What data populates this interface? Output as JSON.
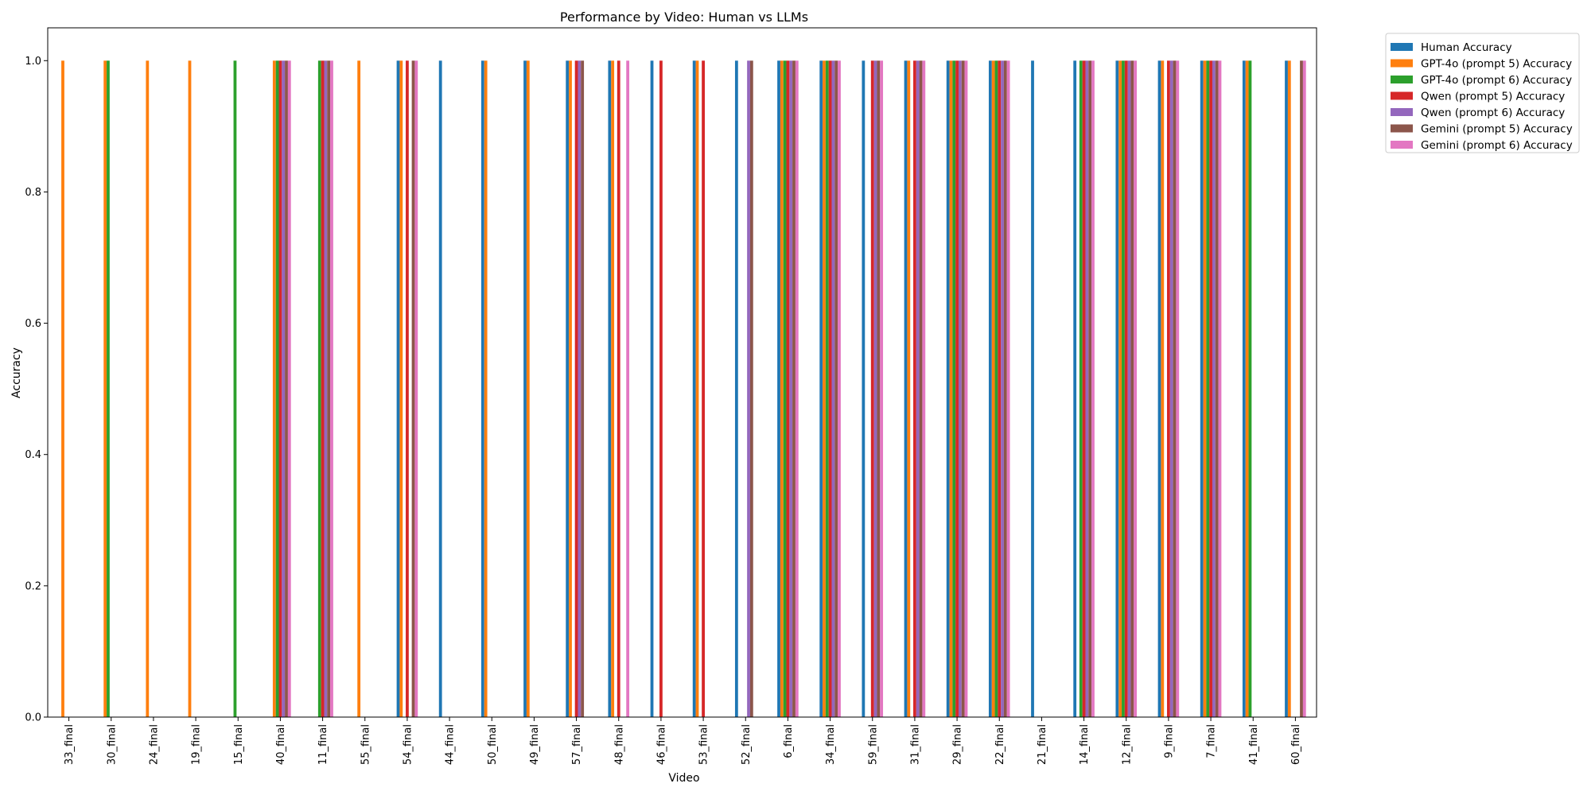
{
  "chart_data": {
    "type": "bar",
    "title": "Performance by Video: Human vs LLMs",
    "xlabel": "Video",
    "ylabel": "Accuracy",
    "ylim": [
      0,
      1.05
    ],
    "yticks": [
      "0.0",
      "0.2",
      "0.4",
      "0.6",
      "0.8",
      "1.0"
    ],
    "grid": false,
    "legend_position": "outside-top-right",
    "categories": [
      "33_final",
      "30_final",
      "24_final",
      "19_final",
      "15_final",
      "40_final",
      "11_final",
      "55_final",
      "54_final",
      "44_final",
      "50_final",
      "49_final",
      "57_final",
      "48_final",
      "46_final",
      "53_final",
      "52_final",
      "6_final",
      "34_final",
      "59_final",
      "31_final",
      "29_final",
      "22_final",
      "21_final",
      "14_final",
      "12_final",
      "9_final",
      "7_final",
      "41_final",
      "60_final"
    ],
    "series": [
      {
        "name": "Human Accuracy",
        "color": "#1f77b4",
        "values": [
          0,
          0,
          0,
          0,
          0,
          0,
          0,
          0,
          1,
          1,
          1,
          1,
          1,
          1,
          1,
          1,
          1,
          1,
          1,
          1,
          1,
          1,
          1,
          1,
          1,
          1,
          1,
          1,
          1,
          1
        ]
      },
      {
        "name": "GPT-4o (prompt 5) Accuracy",
        "color": "#ff7f0e",
        "values": [
          1,
          1,
          1,
          1,
          0,
          1,
          0,
          1,
          1,
          0,
          1,
          1,
          1,
          1,
          0,
          1,
          0,
          1,
          1,
          0,
          1,
          1,
          1,
          0,
          0,
          1,
          1,
          1,
          1,
          1
        ]
      },
      {
        "name": "GPT-4o (prompt 6) Accuracy",
        "color": "#2ca02c",
        "values": [
          0,
          1,
          0,
          0,
          1,
          1,
          1,
          0,
          0,
          0,
          0,
          0,
          0,
          0,
          0,
          0,
          0,
          1,
          1,
          0,
          0,
          1,
          1,
          0,
          1,
          1,
          0,
          1,
          1,
          0
        ]
      },
      {
        "name": "Qwen (prompt 5) Accuracy",
        "color": "#d62728",
        "values": [
          0,
          0,
          0,
          0,
          0,
          1,
          1,
          0,
          1,
          0,
          0,
          0,
          1,
          1,
          1,
          1,
          0,
          1,
          1,
          1,
          1,
          1,
          1,
          0,
          1,
          1,
          1,
          1,
          0,
          0
        ]
      },
      {
        "name": "Qwen (prompt 6) Accuracy",
        "color": "#9467bd",
        "values": [
          0,
          0,
          0,
          0,
          0,
          1,
          1,
          0,
          0,
          0,
          0,
          0,
          1,
          0,
          0,
          0,
          1,
          1,
          1,
          1,
          1,
          1,
          1,
          0,
          1,
          1,
          1,
          1,
          0,
          0
        ]
      },
      {
        "name": "Gemini (prompt 5) Accuracy",
        "color": "#8c564b",
        "values": [
          0,
          0,
          0,
          0,
          0,
          1,
          1,
          0,
          1,
          0,
          0,
          0,
          1,
          0,
          0,
          0,
          1,
          1,
          1,
          1,
          1,
          1,
          1,
          0,
          1,
          1,
          1,
          1,
          0,
          1
        ]
      },
      {
        "name": "Gemini (prompt 6) Accuracy",
        "color": "#e377c2",
        "values": [
          0,
          0,
          0,
          0,
          0,
          1,
          1,
          0,
          1,
          0,
          0,
          0,
          0,
          1,
          0,
          0,
          0,
          1,
          1,
          1,
          1,
          1,
          1,
          0,
          1,
          1,
          1,
          1,
          0,
          1
        ]
      }
    ]
  }
}
